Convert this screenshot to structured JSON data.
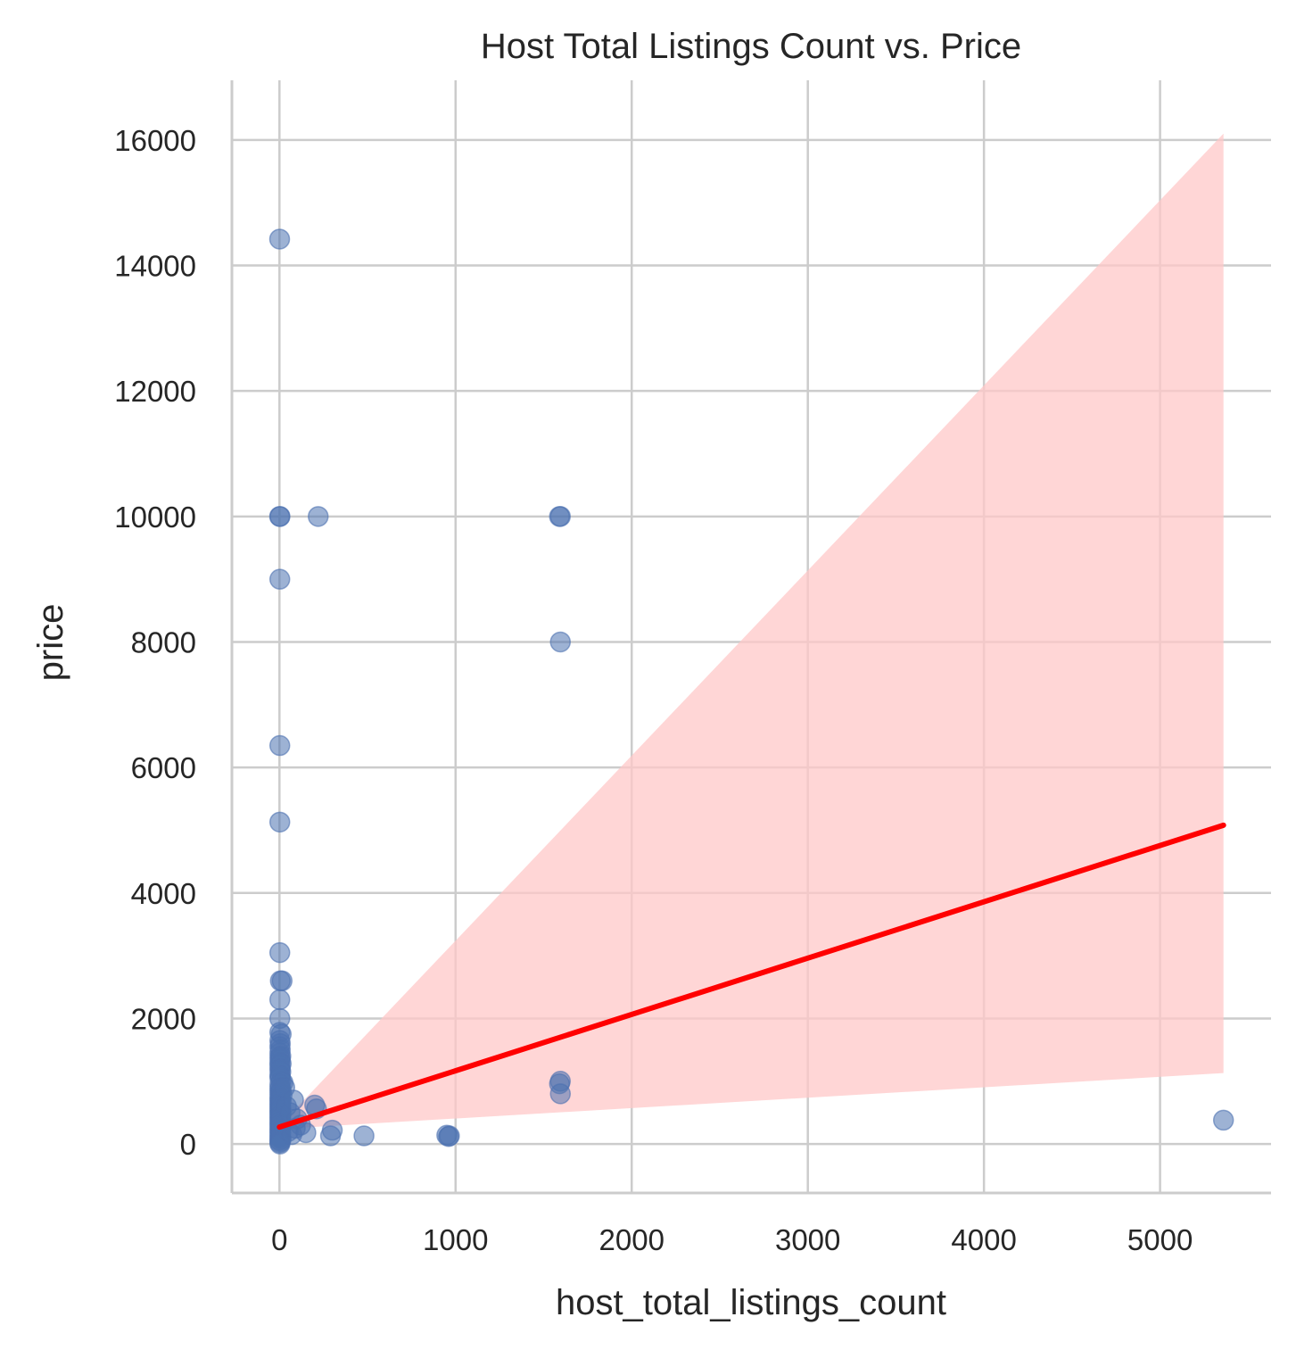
{
  "chart_data": {
    "type": "scatter",
    "title": "Host Total Listings Count vs. Price",
    "xlabel": "host_total_listings_count",
    "ylabel": "price",
    "xlim": [
      -270,
      5630
    ],
    "ylim": [
      -780,
      16950
    ],
    "xticks": [
      0,
      1000,
      2000,
      3000,
      4000,
      5000
    ],
    "yticks": [
      0,
      2000,
      4000,
      6000,
      8000,
      10000,
      12000,
      14000,
      16000
    ],
    "grid": true,
    "colors": {
      "points": "#4c72b0",
      "fit_line": "#ff0000",
      "ci_band": "#ffc8c8"
    },
    "series": [
      {
        "type": "scatter",
        "points": [
          [
            1,
            14420
          ],
          [
            1,
            10000
          ],
          [
            3,
            10000
          ],
          [
            220,
            10000
          ],
          [
            1590,
            10000
          ],
          [
            1595,
            10000
          ],
          [
            2,
            9000
          ],
          [
            1595,
            8000
          ],
          [
            2,
            6350
          ],
          [
            2,
            5130
          ],
          [
            2,
            3050
          ],
          [
            5,
            2600
          ],
          [
            15,
            2600
          ],
          [
            2,
            2300
          ],
          [
            2,
            2000
          ],
          [
            2,
            1780
          ],
          [
            10,
            1750
          ],
          [
            2,
            1650
          ],
          [
            5,
            1600
          ],
          [
            2,
            1550
          ],
          [
            5,
            1500
          ],
          [
            2,
            1450
          ],
          [
            8,
            1400
          ],
          [
            2,
            1380
          ],
          [
            5,
            1350
          ],
          [
            2,
            1300
          ],
          [
            10,
            1280
          ],
          [
            2,
            1250
          ],
          [
            5,
            1200
          ],
          [
            2,
            1180
          ],
          [
            8,
            1150
          ],
          [
            2,
            1100
          ],
          [
            5,
            1080
          ],
          [
            2,
            1050
          ],
          [
            10,
            1000
          ],
          [
            20,
            980
          ],
          [
            2,
            950
          ],
          [
            5,
            900
          ],
          [
            2,
            880
          ],
          [
            10,
            850
          ],
          [
            2,
            820
          ],
          [
            5,
            800
          ],
          [
            15,
            780
          ],
          [
            2,
            750
          ],
          [
            5,
            720
          ],
          [
            2,
            700
          ],
          [
            10,
            680
          ],
          [
            2,
            650
          ],
          [
            5,
            620
          ],
          [
            2,
            600
          ],
          [
            8,
            580
          ],
          [
            2,
            550
          ],
          [
            5,
            520
          ],
          [
            2,
            500
          ],
          [
            10,
            480
          ],
          [
            2,
            450
          ],
          [
            5,
            420
          ],
          [
            2,
            400
          ],
          [
            8,
            380
          ],
          [
            2,
            350
          ],
          [
            5,
            320
          ],
          [
            2,
            300
          ],
          [
            10,
            280
          ],
          [
            2,
            250
          ],
          [
            5,
            220
          ],
          [
            2,
            200
          ],
          [
            8,
            180
          ],
          [
            2,
            150
          ],
          [
            5,
            120
          ],
          [
            2,
            100
          ],
          [
            10,
            80
          ],
          [
            2,
            60
          ],
          [
            5,
            40
          ],
          [
            2,
            20
          ],
          [
            3,
            0
          ],
          [
            30,
            900
          ],
          [
            40,
            600
          ],
          [
            60,
            500
          ],
          [
            80,
            700
          ],
          [
            100,
            400
          ],
          [
            120,
            300
          ],
          [
            50,
            200
          ],
          [
            70,
            150
          ],
          [
            90,
            250
          ],
          [
            150,
            180
          ],
          [
            200,
            620
          ],
          [
            210,
            560
          ],
          [
            300,
            220
          ],
          [
            290,
            130
          ],
          [
            480,
            130
          ],
          [
            950,
            140
          ],
          [
            965,
            130
          ],
          [
            960,
            120
          ],
          [
            1595,
            1000
          ],
          [
            1590,
            960
          ],
          [
            1595,
            800
          ],
          [
            5360,
            380
          ]
        ]
      },
      {
        "type": "line",
        "name": "fit",
        "points": [
          [
            0,
            270
          ],
          [
            5360,
            5080
          ]
        ]
      },
      {
        "type": "area",
        "name": "ci",
        "x": [
          0,
          5360
        ],
        "lower": [
          240,
          1130
        ],
        "upper": [
          290,
          16100
        ]
      }
    ]
  }
}
